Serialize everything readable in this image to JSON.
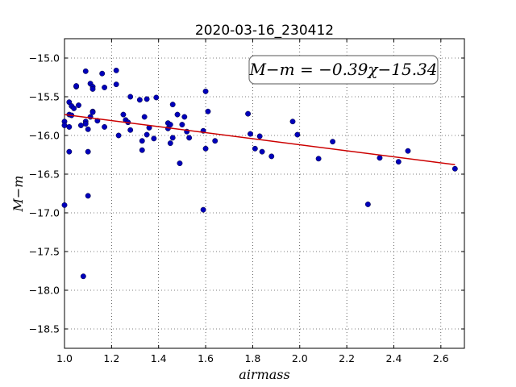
{
  "chart_data": {
    "type": "scatter",
    "title": "2020-03-16_230412",
    "xlabel": "airmass",
    "ylabel": "M−m",
    "xlim": [
      1.0,
      2.7
    ],
    "ylim": [
      -18.75,
      -14.75
    ],
    "x_ticks": [
      "1.0",
      "1.2",
      "1.4",
      "1.6",
      "1.8",
      "2.0",
      "2.2",
      "2.4",
      "2.6"
    ],
    "y_ticks": [
      "−15.0",
      "−15.5",
      "−16.0",
      "−16.5",
      "−17.0",
      "−17.5",
      "−18.0",
      "−18.5"
    ],
    "grid": true,
    "annotation": "M−m = −0.39χ−15.34",
    "fit": {
      "slope": -0.39,
      "intercept": -15.34,
      "color": "#cc0000",
      "x_range": [
        1.0,
        2.66
      ]
    },
    "point_color": "#0000bb",
    "points": [
      [
        1.0,
        -15.82
      ],
      [
        1.0,
        -15.87
      ],
      [
        1.0,
        -16.9
      ],
      [
        1.02,
        -15.57
      ],
      [
        1.02,
        -15.73
      ],
      [
        1.02,
        -15.89
      ],
      [
        1.02,
        -16.21
      ],
      [
        1.03,
        -15.62
      ],
      [
        1.03,
        -15.74
      ],
      [
        1.04,
        -15.65
      ],
      [
        1.05,
        -15.37
      ],
      [
        1.05,
        -15.36
      ],
      [
        1.06,
        -15.61
      ],
      [
        1.07,
        -15.87
      ],
      [
        1.08,
        -17.82
      ],
      [
        1.09,
        -15.82
      ],
      [
        1.09,
        -15.85
      ],
      [
        1.09,
        -15.17
      ],
      [
        1.1,
        -16.21
      ],
      [
        1.1,
        -16.78
      ],
      [
        1.1,
        -15.92
      ],
      [
        1.11,
        -15.76
      ],
      [
        1.11,
        -15.33
      ],
      [
        1.12,
        -15.37
      ],
      [
        1.12,
        -15.4
      ],
      [
        1.12,
        -15.69
      ],
      [
        1.12,
        -15.7
      ],
      [
        1.14,
        -15.81
      ],
      [
        1.16,
        -15.2
      ],
      [
        1.17,
        -15.89
      ],
      [
        1.17,
        -15.38
      ],
      [
        1.22,
        -15.16
      ],
      [
        1.22,
        -15.34
      ],
      [
        1.23,
        -16.0
      ],
      [
        1.25,
        -15.73
      ],
      [
        1.26,
        -15.8
      ],
      [
        1.27,
        -15.83
      ],
      [
        1.28,
        -15.5
      ],
      [
        1.28,
        -15.93
      ],
      [
        1.32,
        -15.54
      ],
      [
        1.33,
        -16.07
      ],
      [
        1.33,
        -16.19
      ],
      [
        1.34,
        -15.76
      ],
      [
        1.35,
        -15.99
      ],
      [
        1.35,
        -15.53
      ],
      [
        1.36,
        -15.9
      ],
      [
        1.38,
        -16.04
      ],
      [
        1.39,
        -15.51
      ],
      [
        1.44,
        -15.84
      ],
      [
        1.44,
        -15.91
      ],
      [
        1.45,
        -16.1
      ],
      [
        1.45,
        -15.86
      ],
      [
        1.46,
        -15.6
      ],
      [
        1.46,
        -16.03
      ],
      [
        1.48,
        -15.73
      ],
      [
        1.49,
        -16.36
      ],
      [
        1.5,
        -15.86
      ],
      [
        1.51,
        -15.76
      ],
      [
        1.52,
        -15.95
      ],
      [
        1.53,
        -16.03
      ],
      [
        1.59,
        -15.94
      ],
      [
        1.59,
        -16.96
      ],
      [
        1.6,
        -15.43
      ],
      [
        1.6,
        -16.17
      ],
      [
        1.61,
        -15.69
      ],
      [
        1.64,
        -16.07
      ],
      [
        1.78,
        -15.72
      ],
      [
        1.79,
        -15.98
      ],
      [
        1.81,
        -16.17
      ],
      [
        1.83,
        -16.01
      ],
      [
        1.84,
        -16.21
      ],
      [
        1.88,
        -16.27
      ],
      [
        1.97,
        -15.82
      ],
      [
        1.99,
        -15.99
      ],
      [
        2.08,
        -16.3
      ],
      [
        2.14,
        -16.08
      ],
      [
        2.29,
        -16.89
      ],
      [
        2.34,
        -16.29
      ],
      [
        2.42,
        -16.34
      ],
      [
        2.46,
        -16.2
      ],
      [
        2.66,
        -16.43
      ]
    ]
  }
}
